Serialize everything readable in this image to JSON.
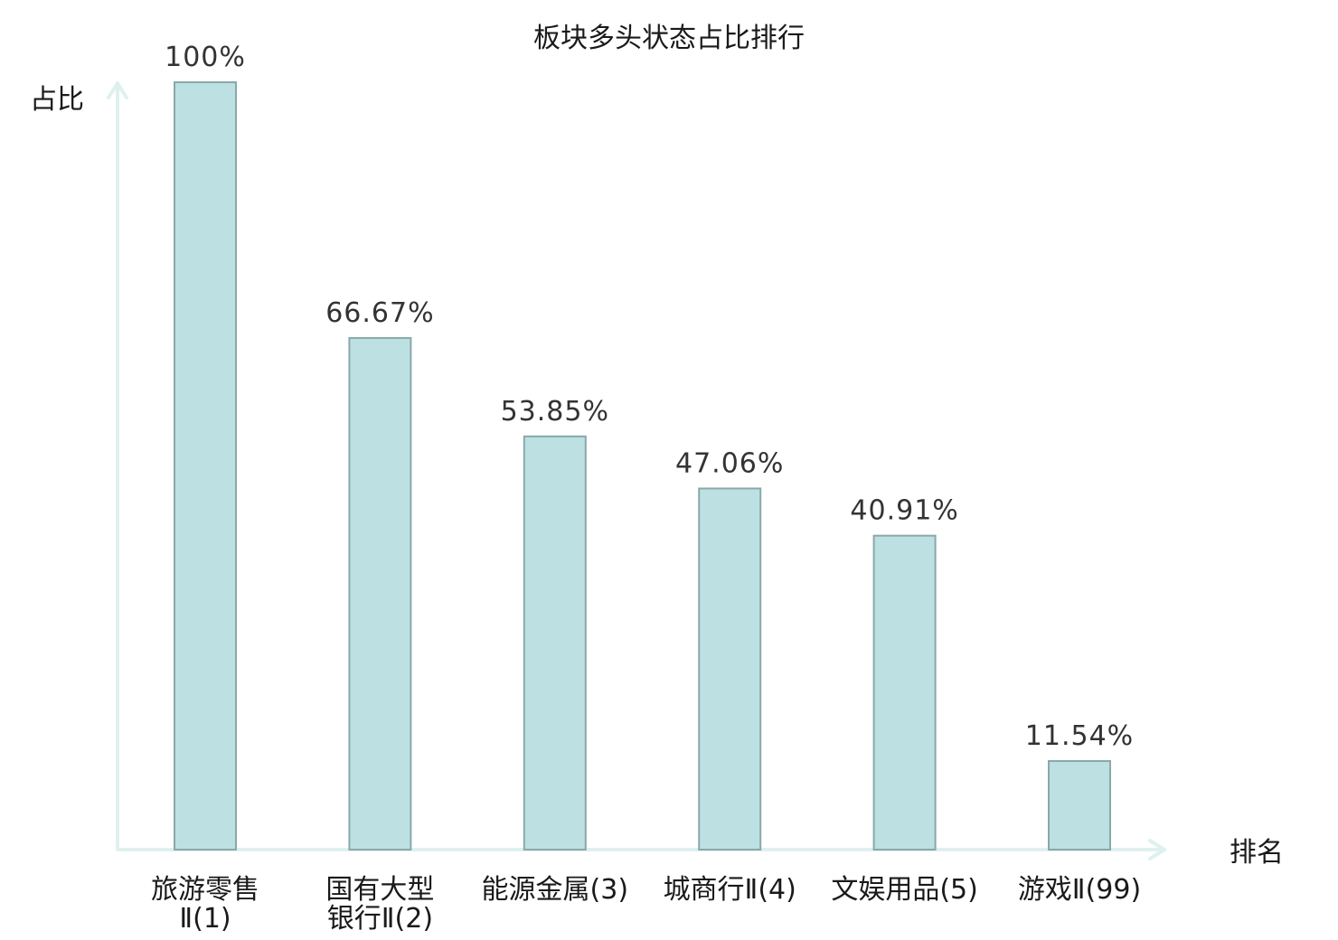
{
  "chart_data": {
    "type": "bar",
    "title": "板块多头状态占比排行",
    "ylabel": "占比",
    "xlabel": "排名",
    "ylim": [
      0,
      100
    ],
    "grid": false,
    "categories": [
      {
        "lines": [
          "旅游零售",
          "Ⅱ(1)"
        ]
      },
      {
        "lines": [
          "国有大型",
          "银行Ⅱ(2)"
        ]
      },
      {
        "lines": [
          "能源金属(3)"
        ]
      },
      {
        "lines": [
          "城商行Ⅱ(4)"
        ]
      },
      {
        "lines": [
          "文娱用品(5)"
        ]
      },
      {
        "lines": [
          "游戏Ⅱ(99)"
        ],
        "highlight": true
      }
    ],
    "values": [
      100,
      66.67,
      53.85,
      47.06,
      40.91,
      11.54
    ],
    "value_labels": [
      "100%",
      "66.67%",
      "53.85%",
      "47.06%",
      "40.91%",
      "11.54%"
    ]
  },
  "colors": {
    "bar_fill": "#bde0e2",
    "bar_stroke": "#8aa8aa",
    "axis": "#dff1ef",
    "highlight_text": "#e0151c"
  }
}
